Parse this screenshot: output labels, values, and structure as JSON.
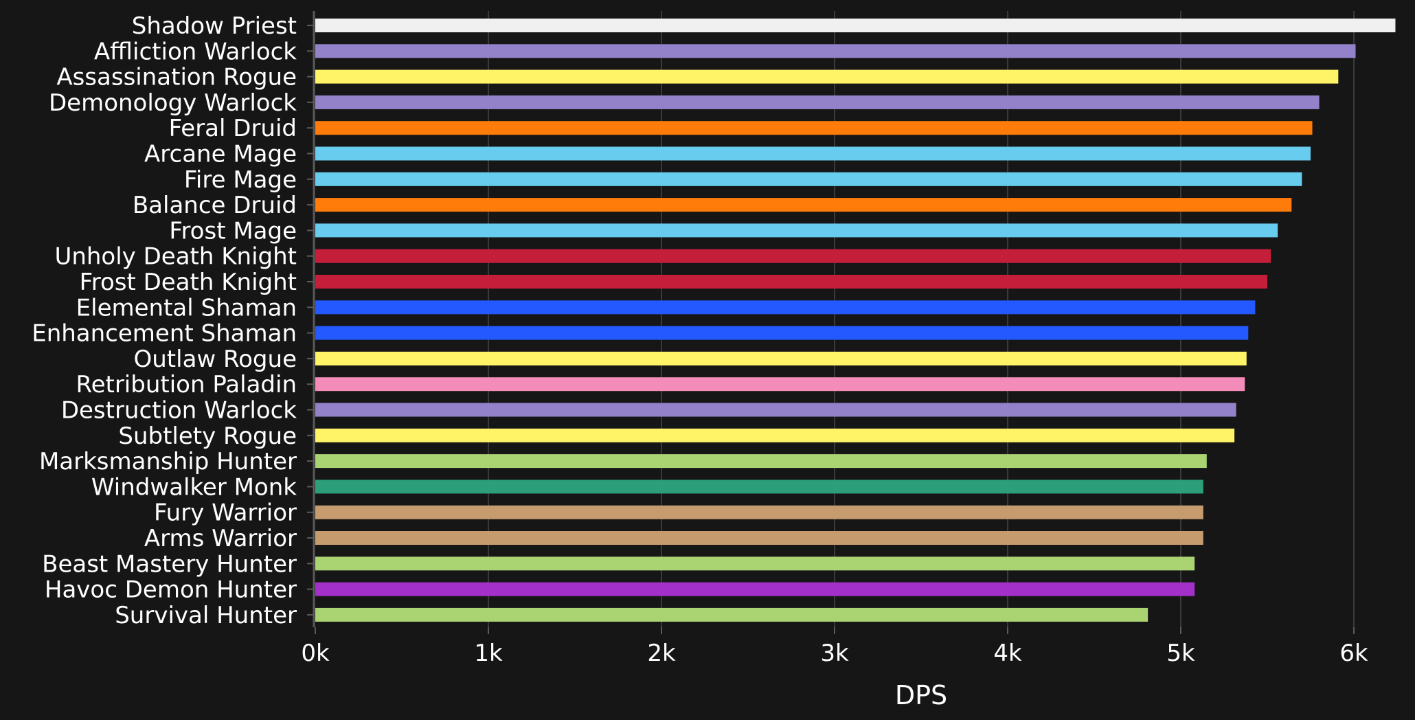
{
  "chart_data": {
    "type": "bar",
    "orientation": "horizontal",
    "title": "",
    "xlabel": "DPS",
    "ylabel": "",
    "xlim": [
      0,
      6250
    ],
    "xticks": [
      0,
      1000,
      2000,
      3000,
      4000,
      5000,
      6000
    ],
    "xtick_labels": [
      "0k",
      "1k",
      "2k",
      "3k",
      "4k",
      "5k",
      "6k"
    ],
    "grid": "vertical",
    "legend": "none",
    "background": "#161616",
    "categories": [
      "Shadow Priest",
      "Affliction Warlock",
      "Assassination Rogue",
      "Demonology Warlock",
      "Feral Druid",
      "Arcane Mage",
      "Fire Mage",
      "Balance Druid",
      "Frost Mage",
      "Unholy Death Knight",
      "Frost Death Knight",
      "Elemental Shaman",
      "Enhancement Shaman",
      "Outlaw Rogue",
      "Retribution Paladin",
      "Destruction Warlock",
      "Subtlety Rogue",
      "Marksmanship Hunter",
      "Windwalker Monk",
      "Fury Warrior",
      "Arms Warrior",
      "Beast Mastery Hunter",
      "Havoc Demon Hunter",
      "Survival Hunter"
    ],
    "values": [
      6240,
      6010,
      5910,
      5800,
      5760,
      5750,
      5700,
      5640,
      5560,
      5520,
      5500,
      5430,
      5390,
      5380,
      5370,
      5320,
      5310,
      5150,
      5130,
      5130,
      5130,
      5080,
      5080,
      4810
    ],
    "colors": [
      "#f0f0f0",
      "#9382c9",
      "#fff468",
      "#9382c9",
      "#ff7c0a",
      "#68ccef",
      "#68ccef",
      "#ff7c0a",
      "#68ccef",
      "#c41e3b",
      "#c41e3b",
      "#2359ff",
      "#2359ff",
      "#fff468",
      "#f48cba",
      "#9382c9",
      "#fff468",
      "#aad372",
      "#2c9e7a",
      "#c69b6d",
      "#c69b6d",
      "#aad372",
      "#a330c9",
      "#aad372"
    ]
  }
}
